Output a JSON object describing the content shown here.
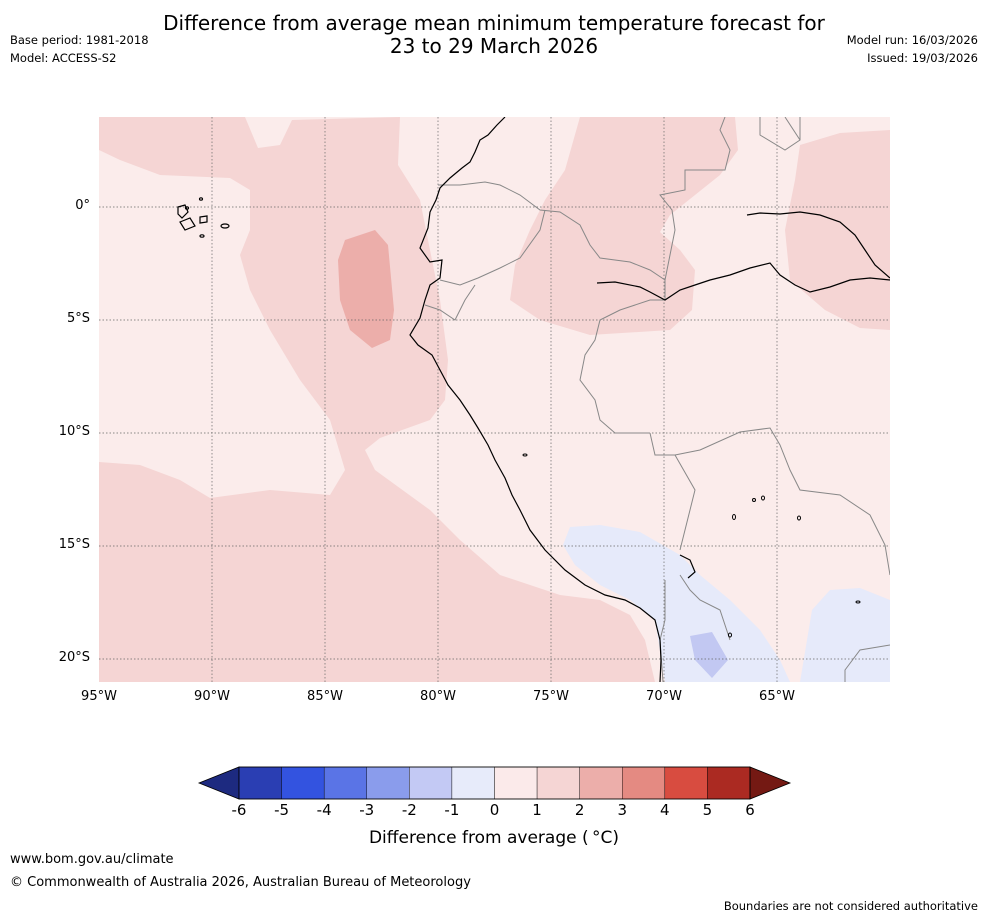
{
  "title": {
    "line1": "Difference from average mean minimum temperature forecast for",
    "line2": "23 to 29 March 2026"
  },
  "meta": {
    "base_period": "Base period: 1981-2018",
    "model": "Model: ACCESS-S2",
    "model_run": "Model run: 16/03/2026",
    "issued": "Issued: 19/03/2026"
  },
  "map": {
    "lat_labels": [
      "0°",
      "5°S",
      "10°S",
      "15°S",
      "20°S"
    ],
    "lon_labels": [
      "95°W",
      "90°W",
      "85°W",
      "80°W",
      "75°W",
      "70°W",
      "65°W"
    ],
    "colors": {
      "cool_neg2": "#c2c8f2",
      "cool_neg1": "#e6eafa",
      "warm_0_1": "#fbeceb",
      "warm_1_2": "#f5d5d4",
      "warm_2_3": "#ecaeaa",
      "coast": "#000000",
      "border": "#888888"
    }
  },
  "colorbar": {
    "title": "Difference from average ( °C)",
    "ticks": [
      "-6",
      "-5",
      "-4",
      "-3",
      "-2",
      "-1",
      "0",
      "1",
      "2",
      "3",
      "4",
      "5",
      "6"
    ],
    "colors": [
      "#1d2a80",
      "#2a3eb3",
      "#3353e0",
      "#5a74e6",
      "#8a9cec",
      "#c3c9f4",
      "#e7ebfa",
      "#fbeaea",
      "#f5d5d4",
      "#ecaeaa",
      "#e48a82",
      "#d84c40",
      "#ab2a22",
      "#741913"
    ]
  },
  "footer": {
    "url": "www.bom.gov.au/climate",
    "copyright": "© Commonwealth of Australia 2026, Australian Bureau of Meteorology",
    "disclaimer": "Boundaries are not considered authoritative"
  }
}
